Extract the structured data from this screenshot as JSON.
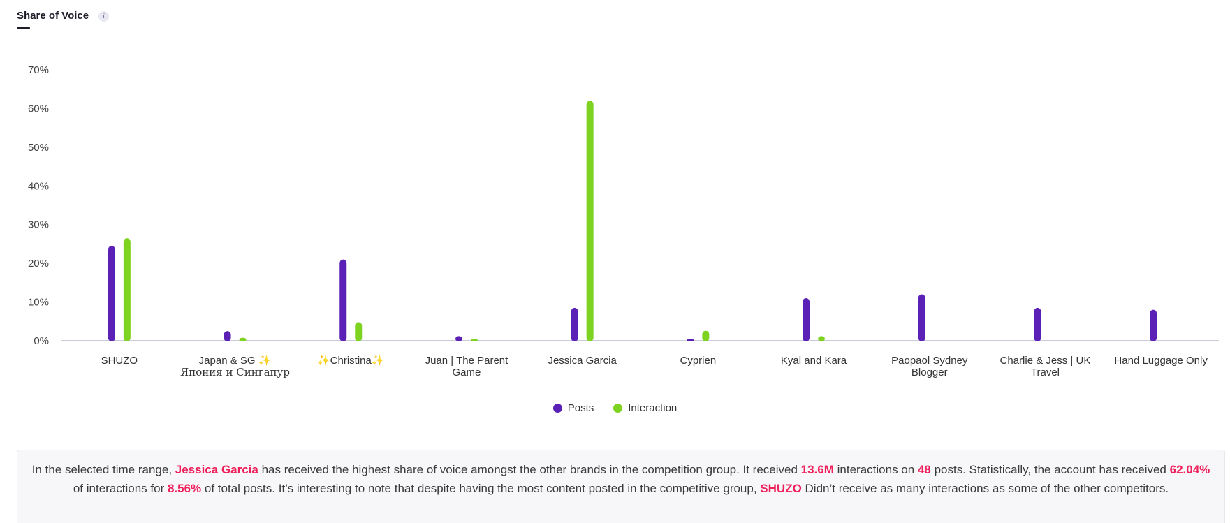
{
  "header": {
    "title": "Share of Voice",
    "info_icon": "info-icon"
  },
  "colors": {
    "posts": "#5b21b6",
    "interaction": "#7ed321",
    "highlight": "#ee1f5a",
    "axis": "#c9ccd8"
  },
  "chart_data": {
    "type": "bar",
    "title": "Share of Voice",
    "xlabel": "",
    "ylabel": "",
    "ylim": [
      0,
      70
    ],
    "yticks": [
      0,
      10,
      20,
      30,
      40,
      50,
      60,
      70
    ],
    "ytick_labels": [
      "0%",
      "10%",
      "20%",
      "30%",
      "40%",
      "50%",
      "60%",
      "70%"
    ],
    "categories": [
      [
        "SHUZO"
      ],
      [
        "Japan & SG ✨",
        "Япония и Сингапур"
      ],
      [
        "✨Christina✨"
      ],
      [
        "Juan | The Parent",
        "Game"
      ],
      [
        "Jessica Garcia"
      ],
      [
        "Cyprien"
      ],
      [
        "Kyal and Kara"
      ],
      [
        "Paopaol Sydney",
        "Blogger"
      ],
      [
        "Charlie & Jess | UK",
        "Travel"
      ],
      [
        "Hand Luggage Only"
      ]
    ],
    "series": [
      {
        "name": "Posts",
        "values": [
          24.5,
          2.5,
          21,
          1.2,
          8.5,
          0.5,
          11,
          12,
          8.5,
          8
        ]
      },
      {
        "name": "Interaction",
        "values": [
          26.5,
          0.8,
          4.8,
          0.5,
          62,
          2.6,
          1.2,
          0,
          0,
          0
        ]
      }
    ],
    "legend": "bottom-center"
  },
  "summary": {
    "t1": "In the selected time range, ",
    "brand": "Jessica Garcia",
    "t2": " has received the highest share of voice amongst the other brands in the competition group. It received ",
    "interactions": "13.6M",
    "t3": " interactions on ",
    "posts": "48",
    "t4": " posts. Statistically, the account has received ",
    "interaction_pct": "62.04%",
    "t5": " of interactions for ",
    "posts_pct": "8.56%",
    "t6": " of total posts. It’s interesting to note that despite having the most content posted in the competitive group, ",
    "top_poster": "SHUZO",
    "t7": " Didn’t receive as many interactions as some of the other competitors."
  }
}
